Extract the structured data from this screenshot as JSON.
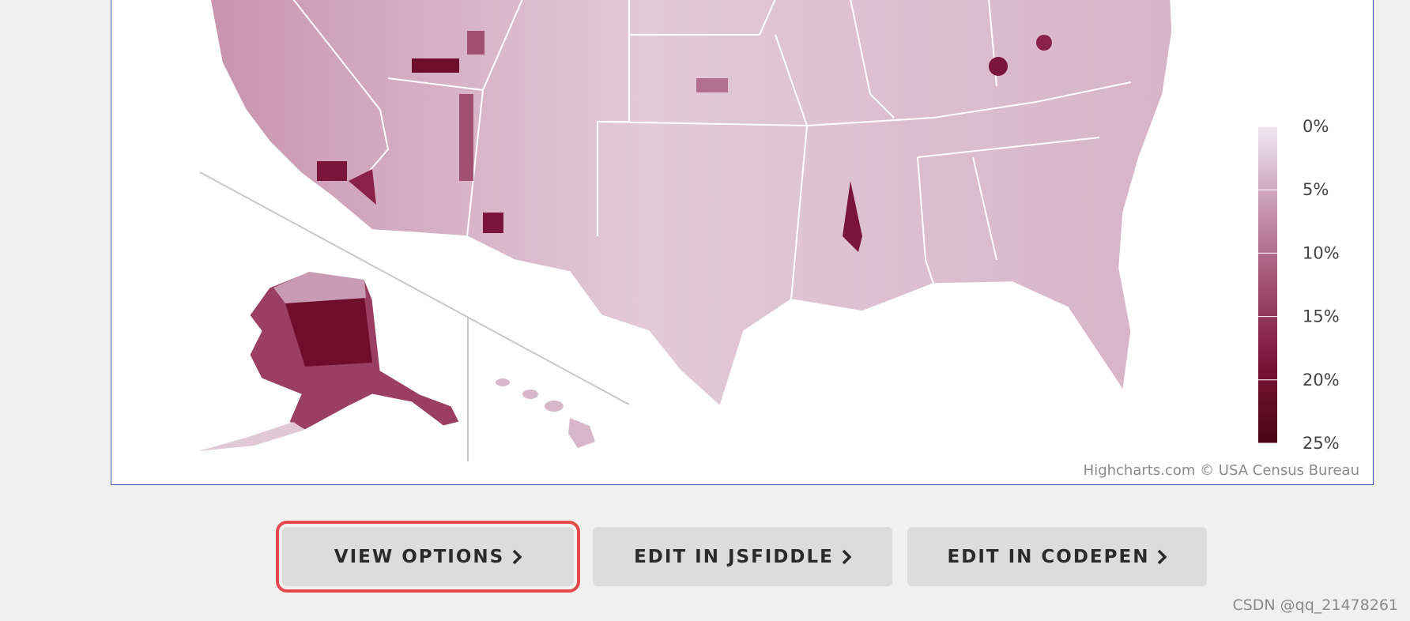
{
  "map": {
    "legend": {
      "range": [
        0,
        25
      ],
      "ticks": [
        {
          "value": 0,
          "label": "0%"
        },
        {
          "value": 5,
          "label": "5%"
        },
        {
          "value": 10,
          "label": "10%"
        },
        {
          "value": 15,
          "label": "15%"
        },
        {
          "value": 20,
          "label": "20%"
        },
        {
          "value": 25,
          "label": "25%"
        }
      ],
      "colors": [
        "#efe9f0",
        "#c99ab4",
        "#a2506f",
        "#7a1438",
        "#4a0514"
      ]
    },
    "credits": "Highcharts.com © USA Census Bureau"
  },
  "buttons": [
    {
      "label": "VIEW OPTIONS",
      "highlighted": true
    },
    {
      "label": "EDIT IN JSFIDDLE",
      "highlighted": false
    },
    {
      "label": "EDIT IN CODEPEN",
      "highlighted": false
    }
  ],
  "watermark": "CSDN @qq_21478261"
}
